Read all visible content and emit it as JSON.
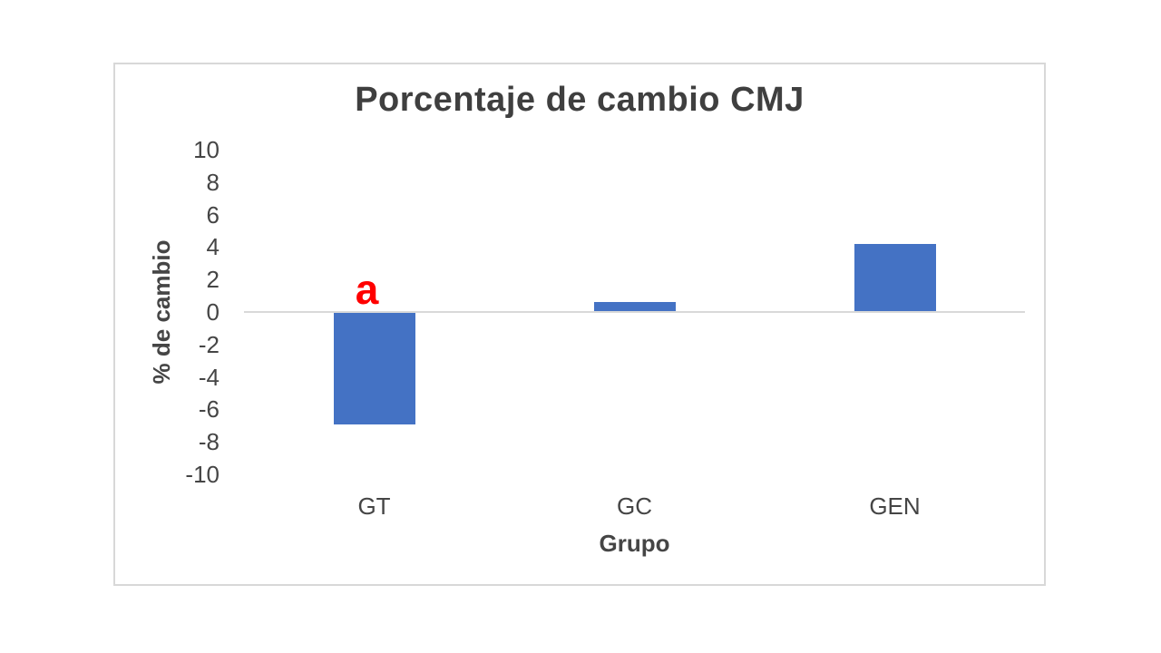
{
  "chart_data": {
    "type": "bar",
    "title": "Porcentaje de cambio CMJ",
    "xlabel": "Grupo",
    "ylabel": "% de cambio",
    "categories": [
      "GT",
      "GC",
      "GEN"
    ],
    "values": [
      -6.9,
      0.6,
      4.2
    ],
    "ylim": [
      -10,
      10
    ],
    "yticks": [
      10,
      8,
      6,
      4,
      2,
      0,
      -2,
      -4,
      -6,
      -8,
      -10
    ],
    "grid": "zero-baseline-only",
    "legend_position": "none",
    "annotations": [
      {
        "text": "a",
        "category": "GT",
        "color": "#FF0000"
      }
    ],
    "colors": {
      "bar": "#4472C4",
      "title_text": "#3F3F3F",
      "axis_text": "#454545",
      "zero_line": "#D9D9D9",
      "frame_border": "#D8D8D8",
      "background": "#FFFFFF"
    }
  }
}
